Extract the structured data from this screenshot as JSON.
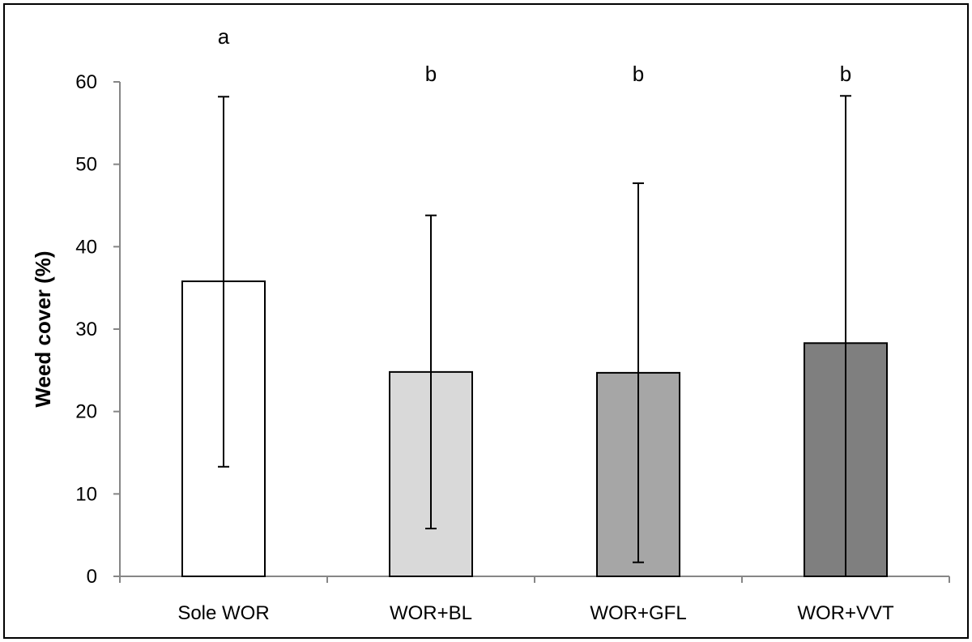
{
  "chart_data": {
    "type": "bar",
    "title": "",
    "xlabel": "",
    "ylabel": "Weed cover (%)",
    "ylim": [
      0,
      60
    ],
    "yticks": [
      0,
      10,
      20,
      30,
      40,
      50,
      60
    ],
    "ytick_labels": [
      "0",
      "10",
      "20",
      "30",
      "40",
      "50",
      "60"
    ],
    "grid": false,
    "legend": "none",
    "categories": [
      "Sole WOR",
      "WOR+BL",
      "WOR+GFL",
      "WOR+VVT"
    ],
    "values": [
      35.8,
      24.8,
      24.7,
      28.3
    ],
    "error_low": [
      13.3,
      5.8,
      1.7,
      0
    ],
    "error_high": [
      58.2,
      43.8,
      47.7,
      58.3
    ],
    "significance_letters": [
      "a",
      "b",
      "b",
      "b"
    ],
    "bar_colors": [
      "#ffffff",
      "#d9d9d9",
      "#a6a6a6",
      "#7f7f7f"
    ],
    "bar_edge_color": "#000000"
  }
}
